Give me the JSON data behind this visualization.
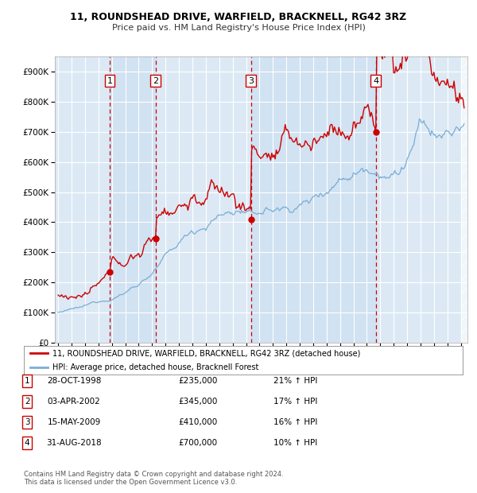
{
  "title1": "11, ROUNDSHEAD DRIVE, WARFIELD, BRACKNELL, RG42 3RZ",
  "title2": "Price paid vs. HM Land Registry's House Price Index (HPI)",
  "ylim": [
    0,
    950000
  ],
  "xlim_start": 1994.75,
  "xlim_end": 2025.5,
  "plot_bg_color": "#dce9f5",
  "fig_bg_color": "#ffffff",
  "grid_color": "#ffffff",
  "sales": [
    {
      "label": "1",
      "date_num": 1998.83,
      "price": 235000,
      "date_str": "28-OCT-1998",
      "pct": "21%"
    },
    {
      "label": "2",
      "date_num": 2002.25,
      "price": 345000,
      "date_str": "03-APR-2002",
      "pct": "17%"
    },
    {
      "label": "3",
      "date_num": 2009.37,
      "price": 410000,
      "date_str": "15-MAY-2009",
      "pct": "16%"
    },
    {
      "label": "4",
      "date_num": 2018.66,
      "price": 700000,
      "date_str": "31-AUG-2018",
      "pct": "10%"
    }
  ],
  "legend_line1": "11, ROUNDSHEAD DRIVE, WARFIELD, BRACKNELL, RG42 3RZ (detached house)",
  "legend_line2": "HPI: Average price, detached house, Bracknell Forest",
  "footer1": "Contains HM Land Registry data © Crown copyright and database right 2024.",
  "footer2": "This data is licensed under the Open Government Licence v3.0.",
  "red_color": "#cc0000",
  "blue_color": "#7aadd4",
  "shade_color": "#c8ddf0"
}
